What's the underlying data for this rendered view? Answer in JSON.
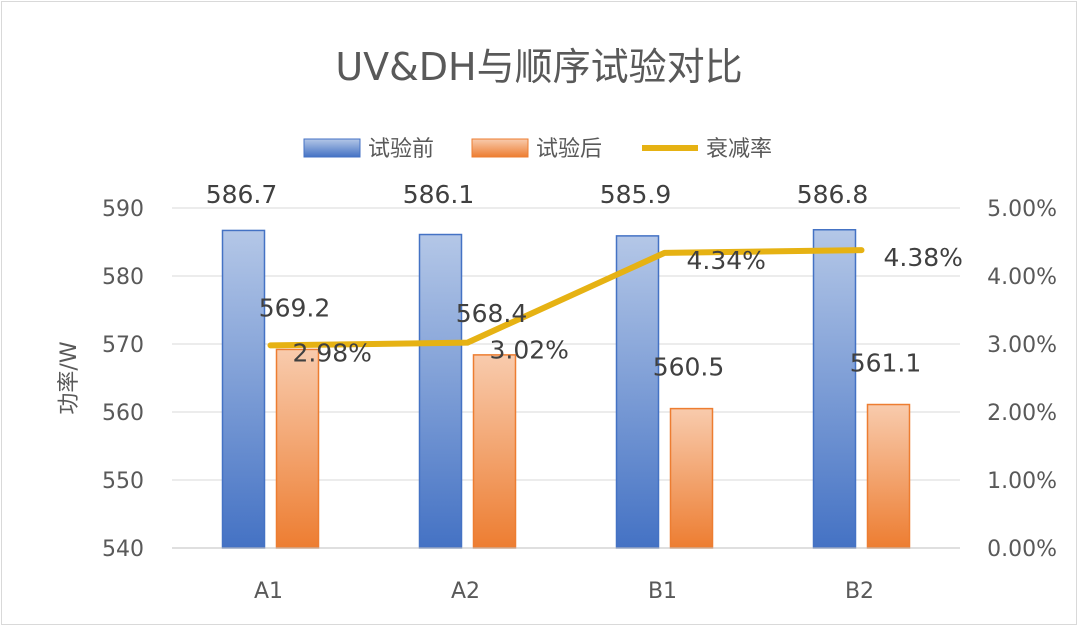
{
  "chart_data": {
    "type": "bar",
    "title": "UV&DH与顺序试验对比",
    "ylabel": "功率/W",
    "ylabel_right": "",
    "categories": [
      "A1",
      "A2",
      "B1",
      "B2"
    ],
    "series": [
      {
        "name": "试验前",
        "kind": "bar",
        "axis": "left",
        "values": [
          586.7,
          586.1,
          585.9,
          586.8
        ],
        "labels": [
          "586.7",
          "586.1",
          "585.9",
          "586.8"
        ]
      },
      {
        "name": "试验后",
        "kind": "bar",
        "axis": "left",
        "values": [
          569.2,
          568.4,
          560.5,
          561.1
        ],
        "labels": [
          "569.2",
          "568.4",
          "560.5",
          "561.1"
        ]
      },
      {
        "name": "衰减率",
        "kind": "line",
        "axis": "right",
        "values": [
          2.98,
          3.02,
          4.34,
          4.38
        ],
        "labels": [
          "2.98%",
          "3.02%",
          "4.34%",
          "4.38%"
        ]
      }
    ],
    "ylim": [
      540,
      590
    ],
    "yticks": [
      "540",
      "550",
      "560",
      "570",
      "580",
      "590"
    ],
    "y2lim": [
      0,
      5
    ],
    "y2ticks": [
      "0.00%",
      "1.00%",
      "2.00%",
      "3.00%",
      "4.00%",
      "5.00%"
    ],
    "legend_position": "top",
    "grid": true,
    "colors": {
      "before_top": "#b4c7e7",
      "before_bottom": "#4472c4",
      "before_border": "#4472c4",
      "after_top": "#f8cbad",
      "after_bottom": "#ed7d31",
      "after_border": "#ed7d31",
      "line": "#e6b213"
    }
  }
}
